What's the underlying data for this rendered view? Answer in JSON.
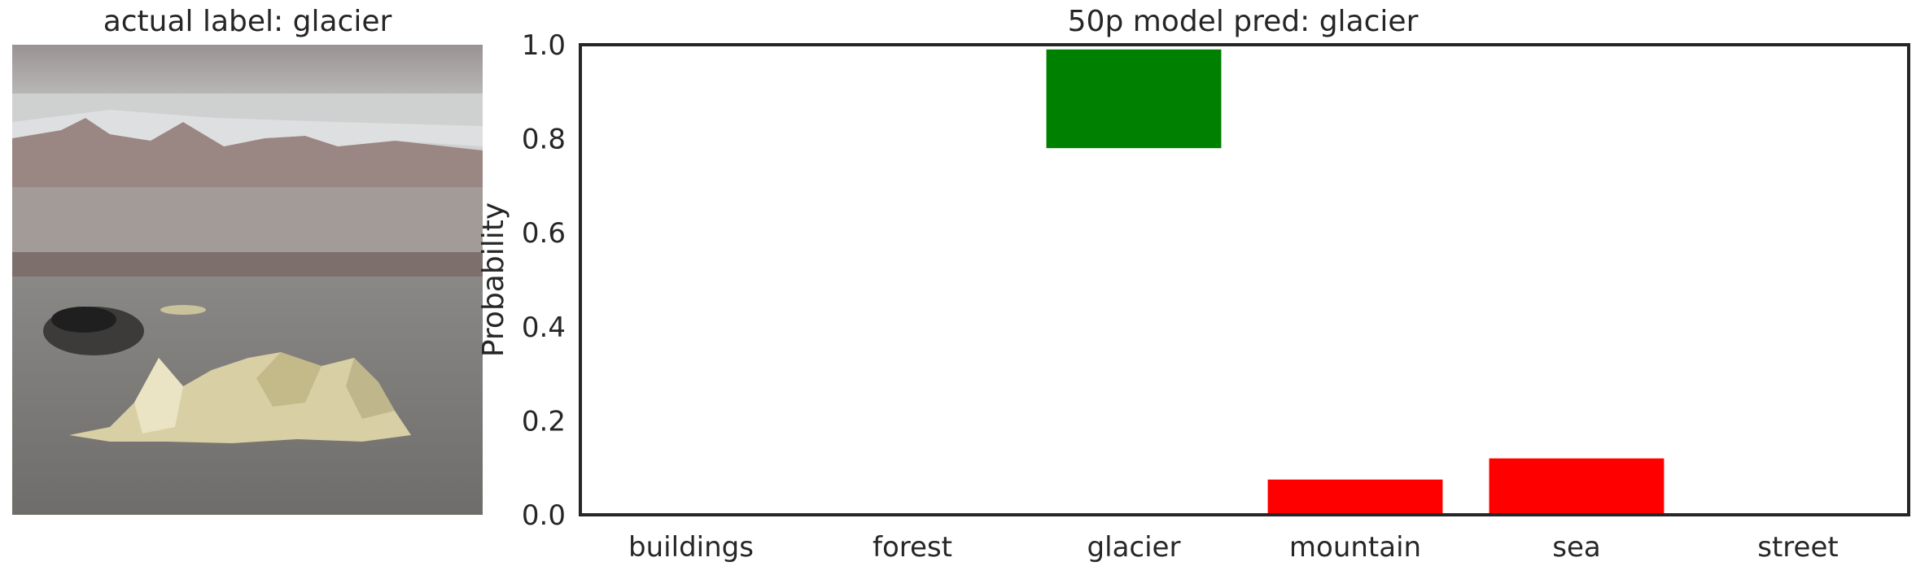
{
  "image_panel": {
    "title": "actual label: glacier"
  },
  "chart_data": {
    "type": "bar",
    "title": "50p model pred: glacier",
    "xlabel": "",
    "ylabel": "Probability",
    "ylim": [
      0,
      1.0
    ],
    "yticks": [
      "0.0",
      "0.2",
      "0.4",
      "0.6",
      "0.8",
      "1.0"
    ],
    "categories": [
      "buildings",
      "forest",
      "glacier",
      "mountain",
      "sea",
      "street"
    ],
    "bars": [
      {
        "category": "buildings",
        "bottom": 0,
        "top": 0,
        "color": "#ff0000"
      },
      {
        "category": "forest",
        "bottom": 0,
        "top": 0,
        "color": "#ff0000"
      },
      {
        "category": "glacier",
        "bottom": 0.78,
        "top": 0.99,
        "color": "#008000"
      },
      {
        "category": "mountain",
        "bottom": 0,
        "top": 0.075,
        "color": "#ff0000"
      },
      {
        "category": "sea",
        "bottom": 0,
        "top": 0.12,
        "color": "#ff0000"
      },
      {
        "category": "street",
        "bottom": 0,
        "top": 0,
        "color": "#ff0000"
      }
    ],
    "grid": false,
    "legend": "none"
  }
}
